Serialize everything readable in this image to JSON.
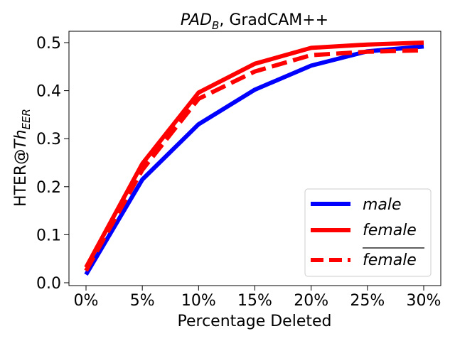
{
  "chart_data": {
    "type": "line",
    "title": {
      "main": "PAD",
      "main_subscript": "B",
      "suffix": ", GradCAM++"
    },
    "xlabel": "Percentage Deleted",
    "ylabel": {
      "prefix": "HTER@",
      "italic": "Th",
      "subscript": "EER"
    },
    "categories": [
      "0%",
      "5%",
      "10%",
      "15%",
      "20%",
      "25%",
      "30%"
    ],
    "ylim": [
      0.0,
      0.5
    ],
    "yticks": [
      "0.0",
      "0.1",
      "0.2",
      "0.3",
      "0.4",
      "0.5"
    ],
    "grid": false,
    "legend_position": "lower-right",
    "series": [
      {
        "name": "male",
        "color": "#0000ff",
        "style": "solid",
        "values": [
          0.017,
          0.215,
          0.33,
          0.402,
          0.452,
          0.482,
          0.492
        ]
      },
      {
        "name": "female",
        "color": "#ff0000",
        "style": "solid",
        "values": [
          0.032,
          0.248,
          0.396,
          0.456,
          0.489,
          0.496,
          0.5
        ]
      },
      {
        "name": "female",
        "overline": true,
        "color": "#ff0000",
        "style": "dashed",
        "values": [
          0.025,
          0.235,
          0.383,
          0.44,
          0.474,
          0.481,
          0.484
        ]
      }
    ]
  }
}
